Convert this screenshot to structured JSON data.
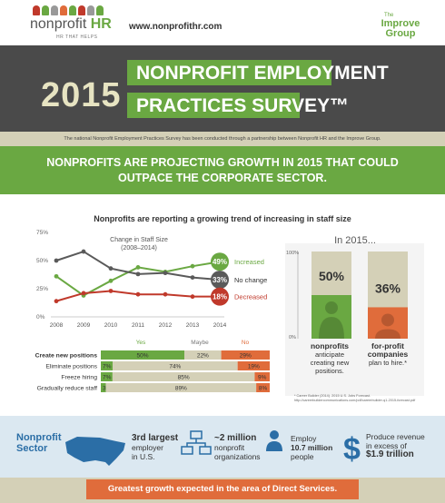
{
  "header": {
    "brand_left": "nonprofit",
    "brand_right": "HR",
    "brand_tag": "HR THAT HELPS",
    "url": "www.nonprofithr.com",
    "partner_line1": "The",
    "partner_line2": "Improve Group"
  },
  "title": {
    "year": "2015",
    "line1": "NONPROFIT EMPLOYMENT",
    "line2": "PRACTICES SURVEY™"
  },
  "intro": "The national Nonprofit Employment Practices Survey has been conducted through a partnership between Nonprofit HR and the Improve Group.",
  "banner": {
    "line1": "NONPROFITS ARE PROJECTING GROWTH IN 2015 THAT COULD",
    "line2": "OUTPACE THE CORPORATE SECTOR."
  },
  "section_title": "Nonprofits are reporting a growing trend of increasing in staff size",
  "chart_data": [
    {
      "type": "line",
      "title": "Change in Staff Size",
      "subtitle": "(2008–2014)",
      "x": [
        "2008",
        "2009",
        "2010",
        "2011",
        "2012",
        "2013",
        "2014"
      ],
      "yticks": [
        "0%",
        "25%",
        "50%",
        "75%"
      ],
      "ylim": [
        0,
        75
      ],
      "series": [
        {
          "name": "Increased",
          "values": [
            36,
            19,
            32,
            44,
            40,
            45,
            49
          ],
          "end_label": "49%",
          "color": "#6aa842"
        },
        {
          "name": "No change",
          "values": [
            50,
            58,
            43,
            38,
            39,
            35,
            33
          ],
          "end_label": "33%",
          "color": "#5a5a5a"
        },
        {
          "name": "Decreased",
          "values": [
            14,
            21,
            23,
            20,
            20,
            18,
            18
          ],
          "end_label": "18%",
          "color": "#c0392b"
        }
      ]
    },
    {
      "type": "bar",
      "stacked": true,
      "orientation": "horizontal",
      "series_labels": [
        "Yes",
        "Maybe",
        "No"
      ],
      "colors": [
        "#6aa842",
        "#d4d0b7",
        "#e06c3b"
      ],
      "rows": [
        {
          "label": "Create new positions",
          "values": [
            50,
            22,
            29
          ],
          "labels": [
            "50%",
            "22%",
            "29%"
          ],
          "bold": true
        },
        {
          "label": "Eliminate positions",
          "values": [
            7,
            74,
            19
          ],
          "labels": [
            "7%",
            "74%",
            "19%"
          ]
        },
        {
          "label": "Freeze hiring",
          "values": [
            7,
            85,
            9
          ],
          "labels": [
            "7%",
            "85%",
            "9%"
          ]
        },
        {
          "label": "Gradually reduce staff",
          "values": [
            3,
            89,
            8
          ],
          "labels": [
            "3%",
            "89%",
            "8%"
          ]
        }
      ]
    },
    {
      "type": "bar",
      "title": "In 2015...",
      "yticks": [
        "0%",
        "100%"
      ],
      "ylim": [
        0,
        100
      ],
      "categories": [
        "nonprofits anticipate creating new positions.",
        "for-profit companies plan to hire.*"
      ],
      "values": [
        50,
        36
      ],
      "labels": [
        "50%",
        "36%"
      ],
      "colors": [
        "#6aa842",
        "#e06c3b"
      ]
    }
  ],
  "captions": {
    "np_bold": "nonprofits",
    "np_rest1": "anticipate",
    "np_rest2": "creating new",
    "np_rest3": "positions.",
    "fp_bold1": "for-profit",
    "fp_bold2": "companies",
    "fp_rest": "plan to hire.*",
    "footnote": "* Career Builder (2014). 2015 U.S. Jobs Forecast. http://careerbuildercommunications.com/pdf/careerbuilder-q1-2015-forecast.pdf"
  },
  "stats": {
    "sector": "Nonprofit Sector",
    "s1a": "3rd largest",
    "s1b": "employer",
    "s1c": "in U.S.",
    "s2a": "~2 million",
    "s2b": "nonprofit",
    "s2c": "organizations",
    "s3a": "Employ",
    "s3b": "10.7 million",
    "s3c": "people",
    "s4a": "Produce revenue",
    "s4b": "in excess of",
    "s4c": "$1.9 trillion"
  },
  "footer": "Greatest growth expected in the area of Direct Services."
}
